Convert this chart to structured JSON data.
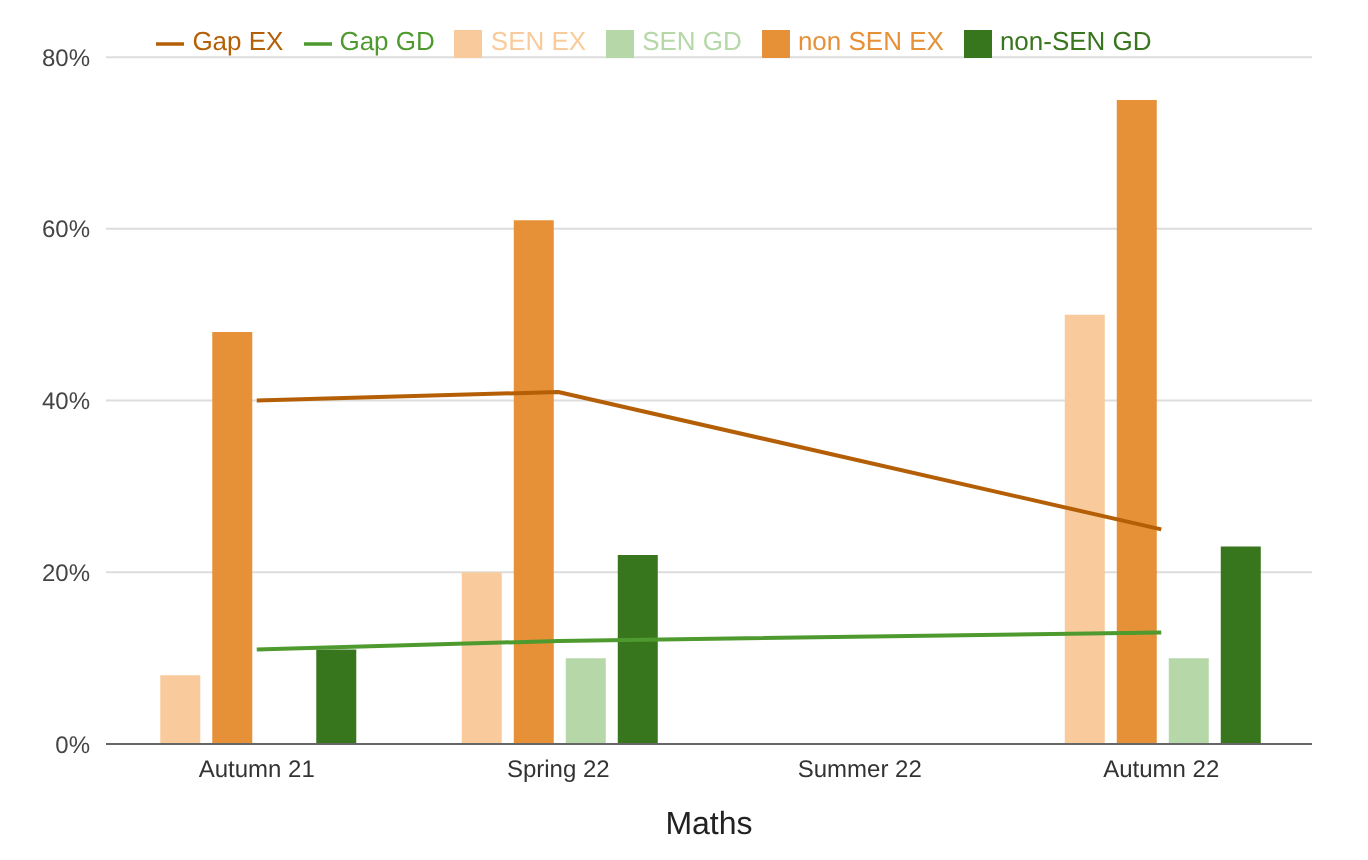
{
  "chart_data": {
    "type": "bar",
    "xlabel": "Maths",
    "categories": [
      "Autumn 21",
      "Spring 22",
      "Summer 22",
      "Autumn 22"
    ],
    "series": [
      {
        "name": "SEN EX",
        "color": "#f9cb9c",
        "values": [
          8,
          20,
          null,
          50
        ]
      },
      {
        "name": "non SEN EX",
        "color": "#e69138",
        "values": [
          48,
          61,
          null,
          75
        ]
      },
      {
        "name": "SEN GD",
        "color": "#b6d7a8",
        "values": [
          0,
          10,
          null,
          10
        ]
      },
      {
        "name": "non-SEN GD",
        "color": "#38761d",
        "values": [
          11,
          22,
          null,
          23
        ]
      },
      {
        "name": "Gap EX",
        "type": "line",
        "color": "#b45f06",
        "values": [
          40,
          41,
          null,
          25
        ]
      },
      {
        "name": "Gap GD",
        "type": "line",
        "color": "#4e9a2e",
        "values": [
          11,
          12,
          null,
          13
        ]
      }
    ],
    "ylim": [
      0,
      80
    ],
    "yticks": [
      {
        "value": 0,
        "label": "0%"
      },
      {
        "value": 20,
        "label": "20%"
      },
      {
        "value": 40,
        "label": "40%"
      },
      {
        "value": 60,
        "label": "60%"
      },
      {
        "value": 80,
        "label": "80%"
      }
    ],
    "grid": "y",
    "legend": "top",
    "marker": "none",
    "line_style": "solid"
  }
}
